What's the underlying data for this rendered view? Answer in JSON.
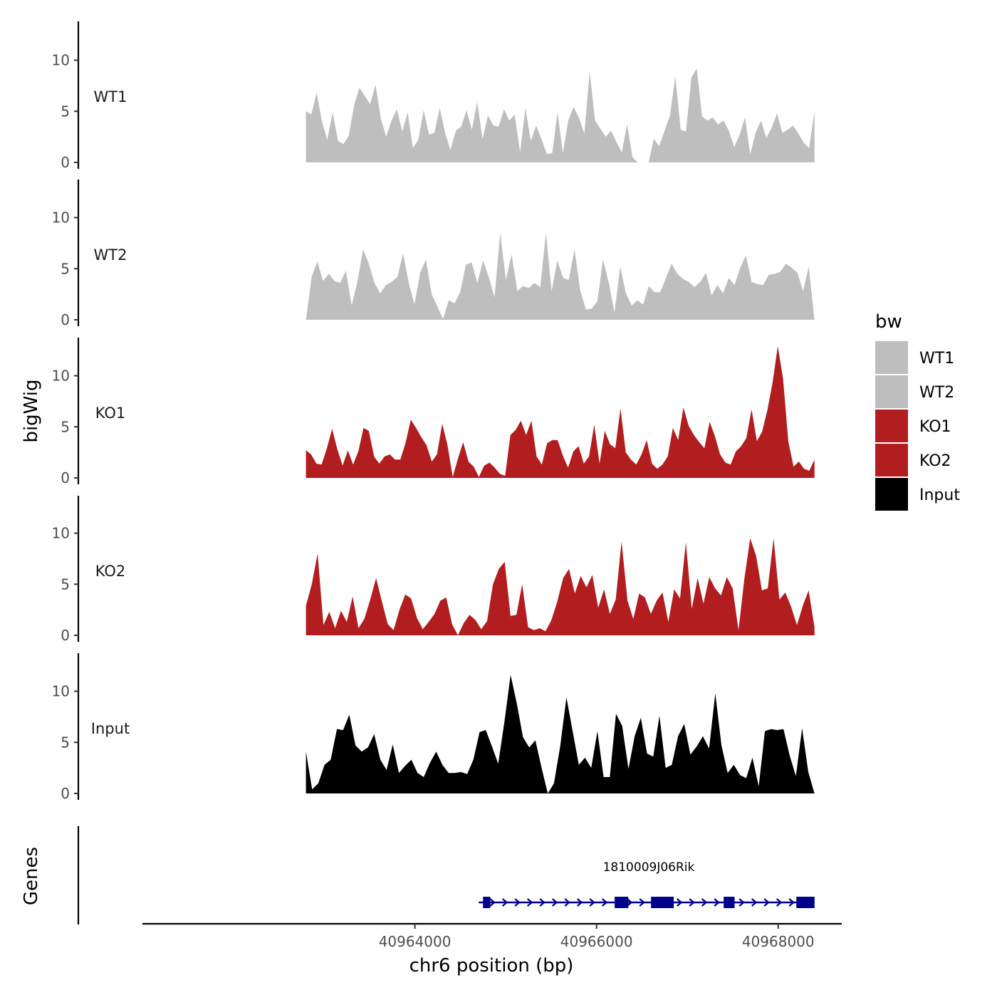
{
  "chart_data": {
    "type": "area",
    "chromosome": "chr6",
    "ylabel": "bigWig",
    "xlabel": "chr6 position (bp)",
    "genes_label": "Genes",
    "xlim": [
      40961000,
      40968700
    ],
    "x_range": [
      40962800,
      40968400
    ],
    "ylim": [
      0,
      13.5
    ],
    "y_ticks": [
      0,
      5,
      10
    ],
    "x_ticks": [
      40964000,
      40966000,
      40968000
    ],
    "x_tick_labels": [
      "40964000",
      "40966000",
      "40968000"
    ],
    "legend": {
      "title": "bw",
      "items": [
        {
          "label": "WT1",
          "color": "#bebebe"
        },
        {
          "label": "WT2",
          "color": "#bebebe"
        },
        {
          "label": "KO1",
          "color": "#b21d1f"
        },
        {
          "label": "KO2",
          "color": "#b21d1f"
        },
        {
          "label": "Input",
          "color": "#000000"
        }
      ]
    },
    "series": [
      {
        "name": "WT1",
        "color": "#bebebe",
        "values": [
          5,
          4.7,
          6.8,
          4,
          2.2,
          4.9,
          2.1,
          1.8,
          2.6,
          5.6,
          7.3,
          6.5,
          5.7,
          7.6,
          4.3,
          2.5,
          4.1,
          5.2,
          3,
          4.9,
          1.4,
          2.2,
          5.1,
          2.7,
          2.9,
          5.3,
          2.9,
          1.2,
          3.1,
          3.5,
          5.1,
          3.2,
          5.9,
          2.3,
          4.6,
          3.6,
          3.5,
          5.2,
          4.1,
          4.7,
          1,
          5.3,
          2.1,
          3.6,
          2.3,
          0.8,
          0.9,
          4.9,
          0.9,
          4.1,
          5.4,
          4.4,
          2.8,
          8.9,
          4.1,
          3.3,
          2.5,
          3.1,
          2,
          1,
          3.7,
          0.5,
          0,
          0,
          0,
          2.3,
          1.6,
          3.1,
          4.6,
          8.4,
          3.2,
          3,
          8.3,
          9.2,
          4.5,
          4.1,
          4.4,
          3.7,
          4.1,
          3.1,
          1.5,
          2.7,
          4.4,
          0.8,
          2.9,
          4.1,
          2.4,
          3.4,
          4.8,
          2.9,
          3.2,
          3.6,
          2.8,
          1.9,
          1.4,
          5
        ]
      },
      {
        "name": "WT2",
        "color": "#bebebe",
        "values": [
          0,
          4.2,
          5.7,
          3.8,
          4.5,
          3.8,
          3.6,
          4.8,
          1.4,
          3.7,
          6.9,
          5.5,
          3.6,
          2.6,
          3.4,
          3.7,
          4.2,
          6.5,
          3.6,
          1.5,
          4.6,
          5.9,
          2.5,
          1.3,
          0.1,
          1.9,
          1.6,
          2.7,
          5.4,
          5.6,
          3.6,
          5.8,
          4.2,
          2.2,
          8.5,
          3.9,
          6.4,
          2.8,
          3.3,
          3.1,
          3.6,
          3.2,
          8.5,
          2.8,
          5.8,
          4.1,
          3.9,
          6.9,
          2.9,
          1,
          1.1,
          1.8,
          5.9,
          3.6,
          0.7,
          5.2,
          2.6,
          1.4,
          1.9,
          1.5,
          3.3,
          2.7,
          2.7,
          4.1,
          5.5,
          4.5,
          4,
          3.7,
          3.2,
          3.7,
          4.6,
          2.4,
          3.4,
          2.6,
          4.1,
          3.4,
          5.1,
          6.3,
          3.7,
          3.5,
          3.4,
          4.4,
          4.5,
          4.7,
          5.5,
          5.1,
          4.6,
          2.8,
          5.2,
          0
        ]
      },
      {
        "name": "KO1",
        "color": "#b21d1f",
        "values": [
          2.7,
          2.3,
          1.4,
          1.3,
          2.9,
          4.8,
          2.8,
          1.2,
          2.7,
          1.3,
          2.6,
          4.9,
          4.6,
          2.1,
          1.4,
          2.1,
          2.3,
          1.8,
          1.8,
          3.4,
          5.7,
          4.9,
          4,
          3.2,
          1.6,
          2.3,
          5.3,
          3.2,
          0.1,
          1.9,
          3.5,
          1.6,
          1.1,
          0.1,
          1.2,
          1.5,
          1,
          0.4,
          0.2,
          4.2,
          4.7,
          5.6,
          4.2,
          5.6,
          2.1,
          1.3,
          3.4,
          3.7,
          3.7,
          2.2,
          1,
          2.6,
          3.1,
          1.4,
          2.1,
          5.2,
          1.4,
          4.6,
          3.3,
          2.9,
          6.8,
          2.5,
          1.8,
          1.3,
          2.3,
          3.7,
          1.4,
          0.9,
          1.3,
          2.1,
          4.9,
          3.7,
          6.9,
          5.1,
          4.2,
          3.5,
          2.9,
          5.5,
          4.1,
          2.3,
          1.5,
          1.3,
          2.6,
          3.1,
          3.9,
          6.7,
          3.6,
          4.5,
          6.6,
          9.3,
          12.9,
          9.7,
          3.6,
          1.1,
          1.6,
          0.9,
          0.7,
          1.8
        ]
      },
      {
        "name": "KO2",
        "color": "#b21d1f",
        "values": [
          2.9,
          5,
          8,
          1,
          2.3,
          0.7,
          2.4,
          1.3,
          3.8,
          0.7,
          1.6,
          3.5,
          5.6,
          3.3,
          1.1,
          0.5,
          2.5,
          4,
          3.6,
          1.7,
          0.6,
          1.3,
          2.1,
          3.4,
          3.7,
          1.1,
          0,
          1.2,
          2,
          1.5,
          0.6,
          1.4,
          5,
          6.5,
          7.2,
          1.9,
          2,
          5,
          0.8,
          0.5,
          0.7,
          0.4,
          1.5,
          3.3,
          5.6,
          6.5,
          4.1,
          5.8,
          4.7,
          5.9,
          2.7,
          4.5,
          2.1,
          3.5,
          9.2,
          3.4,
          1.6,
          4.1,
          3.7,
          2.1,
          3.4,
          4.2,
          1.3,
          4.5,
          3.6,
          9.1,
          2.6,
          5.6,
          3.1,
          5.7,
          4.6,
          3.9,
          5.7,
          4.6,
          0.5,
          5.5,
          9.5,
          7.8,
          4.4,
          4.6,
          9.5,
          3.5,
          4.2,
          2.8,
          1,
          2.9,
          4.4,
          0.8
        ]
      },
      {
        "name": "Input",
        "color": "#000000",
        "values": [
          4.1,
          0.4,
          1,
          2.8,
          3.3,
          6.3,
          6.2,
          7.7,
          4.7,
          4.1,
          4.5,
          5.8,
          3.3,
          2.3,
          4.8,
          2,
          2.7,
          3.3,
          2,
          1.6,
          3,
          4.1,
          2.8,
          2,
          2,
          2.1,
          1.9,
          3.3,
          6,
          6.2,
          4.6,
          2.9,
          7,
          11.6,
          8.8,
          5.5,
          4.5,
          5.2,
          2.5,
          0,
          1,
          4.6,
          9.4,
          6.1,
          2.8,
          3.5,
          2.5,
          6.1,
          1.6,
          1.6,
          7.8,
          6.6,
          2.4,
          5.6,
          7.4,
          3.9,
          3.6,
          7.6,
          2.5,
          2.8,
          5.6,
          6.8,
          3.8,
          4.6,
          5.6,
          4.4,
          9.8,
          4.7,
          2,
          2.8,
          1.8,
          1.5,
          3.5,
          0.7,
          6.1,
          6.3,
          6.2,
          6.3,
          3.7,
          1.7,
          6.4,
          2.1,
          0
        ]
      }
    ],
    "genes": [
      {
        "name": "1810009J06Rik",
        "strand": "+",
        "start": 40964750,
        "end": 40968400,
        "color": "#00008b",
        "exons": [
          [
            40964750,
            40964830
          ],
          [
            40966200,
            40966350
          ],
          [
            40966600,
            40966850
          ],
          [
            40967400,
            40967520
          ],
          [
            40968200,
            40968400
          ]
        ]
      }
    ]
  }
}
